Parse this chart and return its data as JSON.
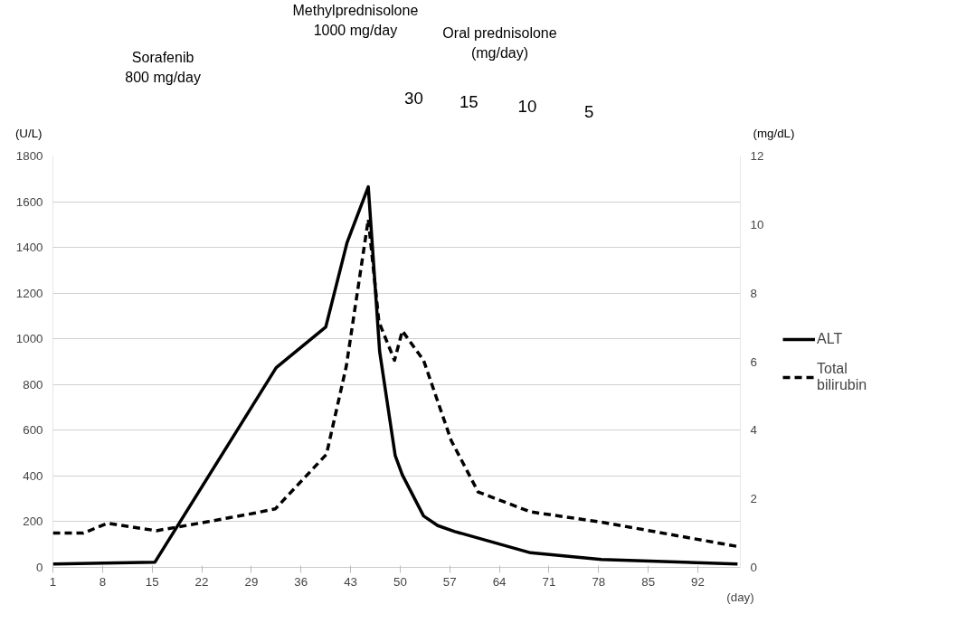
{
  "chart_data": {
    "type": "line",
    "xlabel": "(day)",
    "ylabel": "(U/L)",
    "y2label": "(mg/dL)",
    "xlim": [
      1,
      98
    ],
    "xticks": [
      1,
      8,
      15,
      22,
      29,
      36,
      43,
      50,
      57,
      64,
      71,
      78,
      85,
      92
    ],
    "ylim": [
      0,
      1800
    ],
    "yticks": [
      0,
      200,
      400,
      600,
      800,
      1000,
      1200,
      1400,
      1600,
      1800
    ],
    "y2lim": [
      0,
      12
    ],
    "y2ticks": [
      0,
      2,
      4,
      6,
      8,
      10,
      12
    ],
    "grid": "y",
    "legend": "right",
    "marker": "none",
    "series": [
      {
        "name": "ALT",
        "color": "#000000",
        "line_style": "solid",
        "x": [
          1,
          15.4,
          32.5,
          39.5,
          42.5,
          45.5,
          47.1,
          49.3,
          50.3,
          53.3,
          55.3,
          57.7,
          68.4,
          78.4,
          97.6
        ],
        "values": [
          15,
          23,
          874,
          1052,
          1421,
          1665,
          945,
          489,
          405,
          225,
          183,
          157,
          64,
          35,
          15
        ]
      },
      {
        "name": "Total\nbilirubin",
        "color": "#000000",
        "line_style": "dashed",
        "axis": "y2",
        "x": [
          1,
          5.3,
          8.7,
          15.6,
          22.8,
          29.6,
          32.4,
          39.6,
          42.4,
          45.5,
          47.0,
          49.2,
          50.3,
          53.3,
          57.2,
          61.0,
          68.4,
          78.4,
          97.6
        ],
        "values": [
          1.0,
          1.0,
          1.29,
          1.07,
          1.33,
          1.59,
          1.71,
          3.3,
          5.87,
          10.15,
          7.16,
          6.04,
          6.9,
          6.04,
          3.7,
          2.2,
          1.62,
          1.32,
          0.61
        ]
      }
    ],
    "annotations": [
      "Sorafenib\n800 mg/day",
      "Methylprednisolone\n1000 mg/day",
      "Oral prednisolone\n(mg/day)",
      "30",
      "15",
      "10",
      "5"
    ]
  }
}
